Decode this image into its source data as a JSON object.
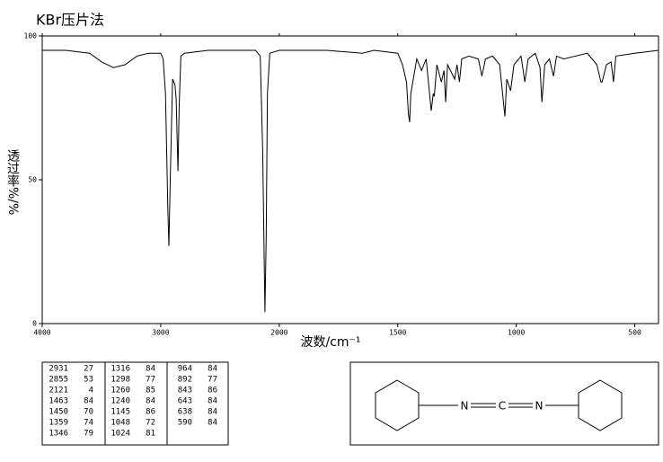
{
  "chart_data": {
    "type": "line",
    "title": "KBr压片法",
    "x_label": "波数/cm⁻¹",
    "y_label": "透过率%/%",
    "x": [
      4000,
      3800,
      3600,
      3500,
      3400,
      3300,
      3200,
      3100,
      3000,
      2980,
      2960,
      2940,
      2931,
      2920,
      2900,
      2880,
      2870,
      2855,
      2845,
      2830,
      2800,
      2600,
      2400,
      2200,
      2160,
      2140,
      2121,
      2110,
      2100,
      2080,
      2000,
      1800,
      1650,
      1600,
      1500,
      1480,
      1463,
      1455,
      1450,
      1445,
      1420,
      1400,
      1380,
      1359,
      1350,
      1346,
      1335,
      1316,
      1305,
      1298,
      1290,
      1260,
      1250,
      1240,
      1230,
      1200,
      1160,
      1145,
      1130,
      1100,
      1070,
      1048,
      1040,
      1024,
      1010,
      980,
      964,
      950,
      920,
      900,
      892,
      880,
      860,
      843,
      830,
      800,
      700,
      660,
      643,
      638,
      620,
      600,
      590,
      580,
      500,
      400
    ],
    "values": [
      95,
      95,
      94,
      91,
      89,
      90,
      93,
      94,
      94,
      92,
      80,
      40,
      27,
      50,
      85,
      83,
      78,
      53,
      75,
      93,
      94,
      95,
      95,
      95,
      93,
      60,
      4,
      30,
      80,
      94,
      95,
      95,
      94,
      95,
      94,
      90,
      84,
      73,
      70,
      80,
      92,
      88,
      92,
      74,
      80,
      79,
      90,
      84,
      88,
      77,
      90,
      85,
      90,
      84,
      92,
      93,
      92,
      86,
      92,
      93,
      90,
      72,
      85,
      81,
      90,
      93,
      84,
      92,
      94,
      89,
      77,
      90,
      92,
      86,
      93,
      92,
      94,
      90,
      84,
      84,
      90,
      91,
      84,
      93,
      94,
      95
    ],
    "color": "#000000",
    "xlim": [
      4000,
      400
    ],
    "xbreak": 2000,
    "xticks": [
      4000,
      3000,
      2000,
      1500,
      1000,
      500
    ],
    "ylim": [
      0,
      100
    ],
    "yticks": [
      0,
      50,
      100
    ]
  },
  "peak_table": {
    "columns": [
      [
        [
          2931,
          27
        ],
        [
          2855,
          53
        ],
        [
          2121,
          4
        ],
        [
          1463,
          84
        ],
        [
          1450,
          70
        ],
        [
          1359,
          74
        ],
        [
          1346,
          79
        ]
      ],
      [
        [
          1316,
          84
        ],
        [
          1298,
          77
        ],
        [
          1260,
          85
        ],
        [
          1240,
          84
        ],
        [
          1145,
          86
        ],
        [
          1048,
          72
        ],
        [
          1024,
          81
        ]
      ],
      [
        [
          964,
          84
        ],
        [
          892,
          77
        ],
        [
          843,
          86
        ],
        [
          643,
          84
        ],
        [
          638,
          84
        ],
        [
          590,
          84
        ]
      ]
    ]
  },
  "structure": {
    "atoms": [
      "N",
      "C",
      "N"
    ]
  }
}
